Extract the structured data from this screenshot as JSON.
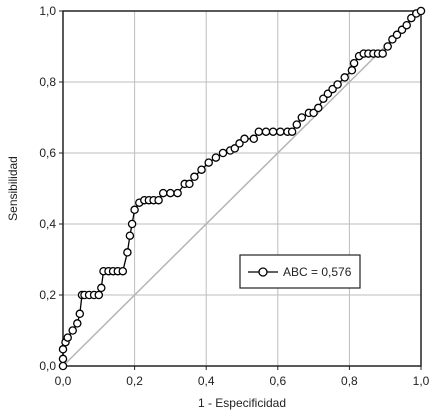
{
  "chart_data": {
    "type": "line",
    "xlabel": "1 - Especificidad",
    "ylabel": "Sensibilidad",
    "xlim": [
      0,
      1
    ],
    "ylim": [
      0,
      1
    ],
    "xticks": [
      "0,0",
      "0,2",
      "0,4",
      "0,6",
      "0,8",
      "1,0"
    ],
    "yticks": [
      "0,0",
      "0,2",
      "0,4",
      "0,6",
      "0,8",
      "1,0"
    ],
    "grid": true,
    "legend": "lower-right",
    "series": [
      {
        "name": "ABC = 0,576",
        "color": "#000000",
        "x": [
          0.0,
          0.0,
          0.0,
          0.007,
          0.013,
          0.027,
          0.04,
          0.047,
          0.053,
          0.06,
          0.073,
          0.087,
          0.1,
          0.107,
          0.113,
          0.127,
          0.14,
          0.153,
          0.167,
          0.18,
          0.187,
          0.193,
          0.2,
          0.213,
          0.227,
          0.24,
          0.253,
          0.267,
          0.28,
          0.3,
          0.32,
          0.34,
          0.353,
          0.367,
          0.387,
          0.407,
          0.427,
          0.447,
          0.467,
          0.48,
          0.493,
          0.507,
          0.533,
          0.547,
          0.567,
          0.587,
          0.607,
          0.627,
          0.64,
          0.653,
          0.667,
          0.687,
          0.7,
          0.713,
          0.727,
          0.74,
          0.753,
          0.767,
          0.787,
          0.807,
          0.813,
          0.827,
          0.84,
          0.853,
          0.867,
          0.88,
          0.893,
          0.907,
          0.92,
          0.933,
          0.947,
          0.96,
          0.973,
          0.987,
          1.0
        ],
        "y": [
          0.0,
          0.02,
          0.047,
          0.067,
          0.08,
          0.1,
          0.12,
          0.147,
          0.2,
          0.2,
          0.2,
          0.2,
          0.2,
          0.22,
          0.267,
          0.267,
          0.267,
          0.267,
          0.267,
          0.32,
          0.367,
          0.4,
          0.44,
          0.46,
          0.467,
          0.467,
          0.467,
          0.467,
          0.487,
          0.487,
          0.487,
          0.513,
          0.513,
          0.533,
          0.553,
          0.573,
          0.587,
          0.6,
          0.607,
          0.613,
          0.627,
          0.64,
          0.64,
          0.66,
          0.66,
          0.66,
          0.66,
          0.66,
          0.66,
          0.68,
          0.7,
          0.713,
          0.713,
          0.727,
          0.753,
          0.767,
          0.78,
          0.793,
          0.813,
          0.833,
          0.853,
          0.873,
          0.88,
          0.88,
          0.88,
          0.88,
          0.88,
          0.9,
          0.92,
          0.933,
          0.947,
          0.96,
          0.98,
          0.993,
          1.0
        ]
      }
    ]
  }
}
